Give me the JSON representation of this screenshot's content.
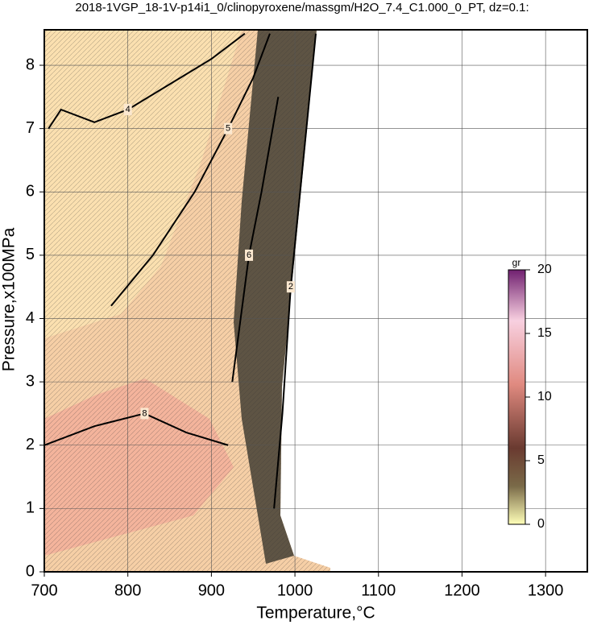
{
  "chart_data": {
    "type": "contour",
    "title": "2018-1VGP_18-1V-p14i1_0/clinopyroxene/massgm/H2O_7.4_C1.000_0_PT, dz=0.1:",
    "x_label": "Temperature,°C",
    "y_label": "Pressure,x100MPa",
    "xlim": [
      700,
      1350
    ],
    "ylim": [
      0,
      8.56
    ],
    "xticks": [
      700,
      800,
      900,
      1000,
      1100,
      1200,
      1300
    ],
    "yticks": [
      0,
      1,
      2,
      3,
      4,
      5,
      6,
      7,
      8
    ],
    "grid": true,
    "contours": [
      {
        "level": 4,
        "x": [
          705,
          720,
          760,
          800,
          850,
          900,
          940
        ],
        "y": [
          7.0,
          7.3,
          7.1,
          7.3,
          7.7,
          8.1,
          8.5
        ]
      },
      {
        "level": 5,
        "x": [
          780,
          830,
          880,
          920,
          950,
          970
        ],
        "y": [
          4.2,
          5.0,
          6.0,
          7.0,
          7.8,
          8.5
        ]
      },
      {
        "level": 8,
        "x": [
          700,
          760,
          820,
          870,
          920
        ],
        "y": [
          2.0,
          2.3,
          2.5,
          2.2,
          2.0
        ]
      },
      {
        "level": 6,
        "x": [
          925,
          935,
          945,
          960,
          980
        ],
        "y": [
          3.0,
          4.0,
          5.0,
          6.0,
          7.5
        ]
      },
      {
        "level": 2,
        "x": [
          975,
          985,
          995,
          1010,
          1025
        ],
        "y": [
          1.0,
          2.5,
          4.5,
          6.5,
          8.5
        ]
      }
    ],
    "colorbar": {
      "label": "gr",
      "lim": [
        0,
        20
      ],
      "ticks": [
        0,
        5,
        10,
        15,
        20
      ]
    }
  }
}
